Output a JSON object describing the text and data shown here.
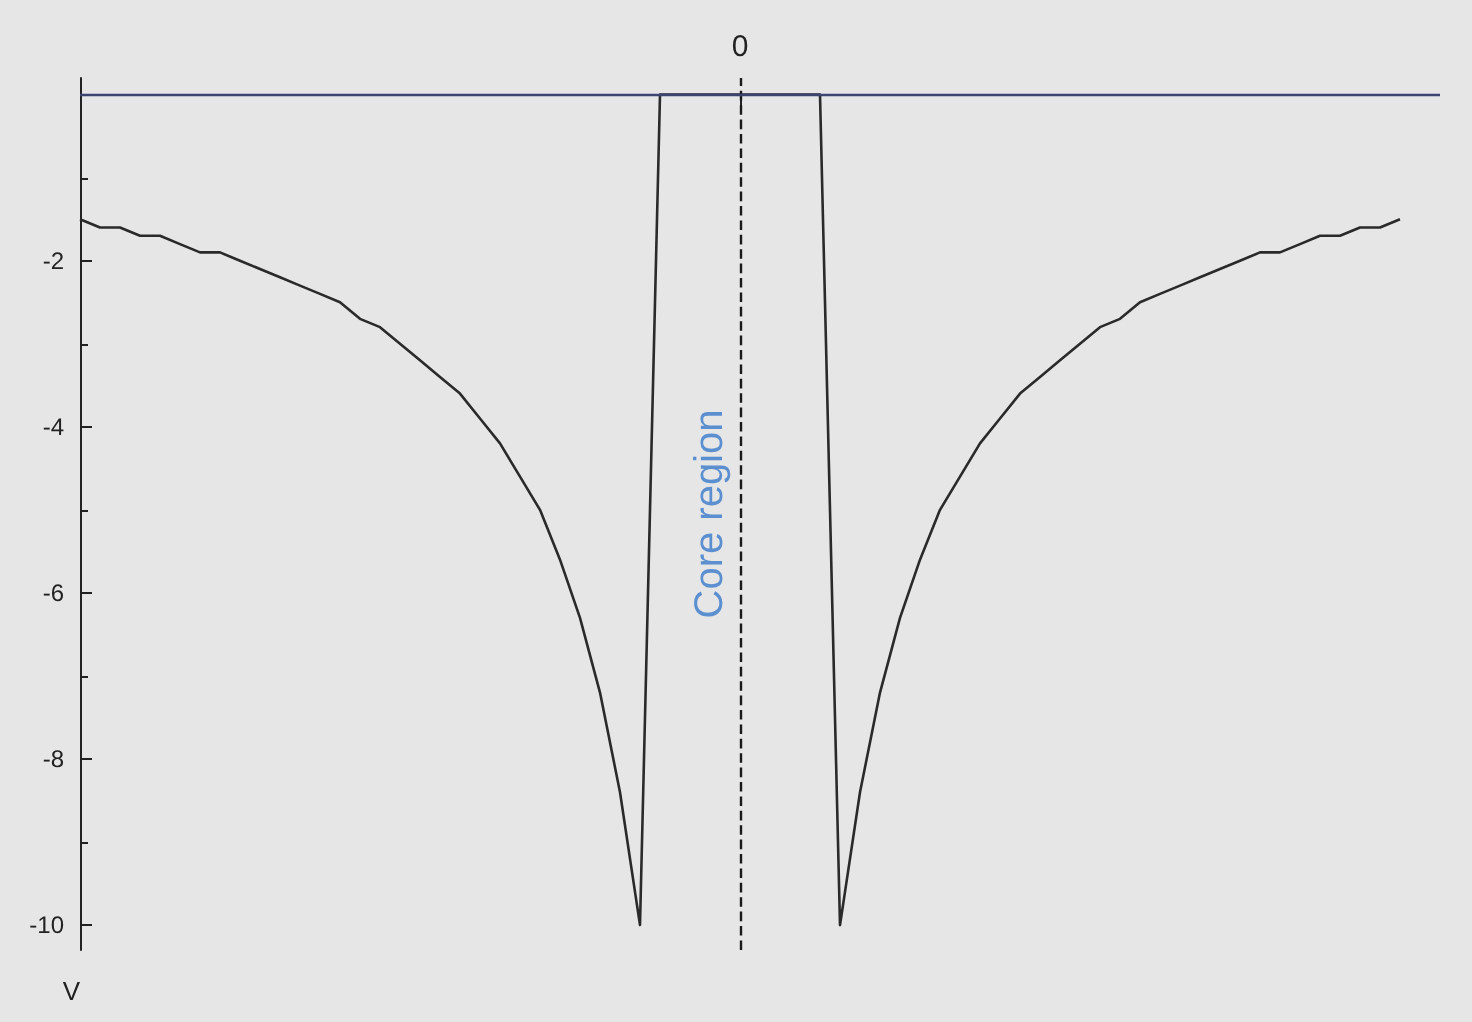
{
  "chart_data": {
    "type": "line",
    "ylabel": "V",
    "categories": [
      null,
      null,
      null,
      null,
      null,
      null,
      null,
      null,
      null,
      null,
      null,
      null,
      null,
      null,
      null,
      null,
      null,
      null,
      null,
      null,
      null,
      null,
      null,
      null,
      null,
      null,
      null,
      null,
      null,
      null,
      null,
      null,
      null,
      "0",
      null,
      null,
      null,
      null,
      null,
      null,
      null,
      null,
      null,
      null,
      null,
      null,
      null,
      null,
      null,
      null,
      null,
      null,
      null,
      null,
      null,
      null,
      null,
      null,
      null,
      null,
      null,
      null,
      null,
      null,
      null,
      null,
      null,
      null,
      null
    ],
    "series": [
      {
        "color": "#2a2a2a",
        "values": [
          -1.5,
          -1.6,
          -1.6,
          -1.7,
          -1.7,
          -1.8,
          -1.9,
          -1.9,
          -2.0,
          -2.1,
          -2.2,
          -2.3,
          -2.4,
          -2.5,
          -2.7,
          -2.8,
          -3.0,
          -3.2,
          -3.4,
          -3.6,
          -3.9,
          -4.2,
          -4.6,
          -5.0,
          -5.6,
          -6.3,
          -7.2,
          -8.4,
          -10,
          0,
          0,
          0,
          0,
          0,
          0,
          0,
          0,
          0,
          -10,
          -8.4,
          -7.2,
          -6.3,
          -5.6,
          -5.0,
          -4.6,
          -4.2,
          -3.9,
          -3.6,
          -3.4,
          -3.2,
          -3.0,
          -2.8,
          -2.7,
          -2.5,
          -2.4,
          -2.3,
          -2.2,
          -2.1,
          -2.0,
          -1.9,
          -1.9,
          -1.8,
          -1.7,
          -1.7,
          -1.6,
          -1.6,
          -1.5,
          null,
          null
        ]
      }
    ],
    "ylim": [
      -10.3,
      0.2
    ],
    "yticks": [
      -10,
      -8,
      -6,
      -4,
      -2
    ],
    "ref_lines": [
      {
        "axis": "x",
        "value": "0",
        "label": "Core region",
        "color": "#1a1a1a",
        "line_style": "dashed"
      },
      {
        "axis": "y",
        "value": 0,
        "color": "#3c4470",
        "line_style": "solid"
      }
    ],
    "grid": false,
    "marker": "none",
    "line_style": "solid"
  }
}
